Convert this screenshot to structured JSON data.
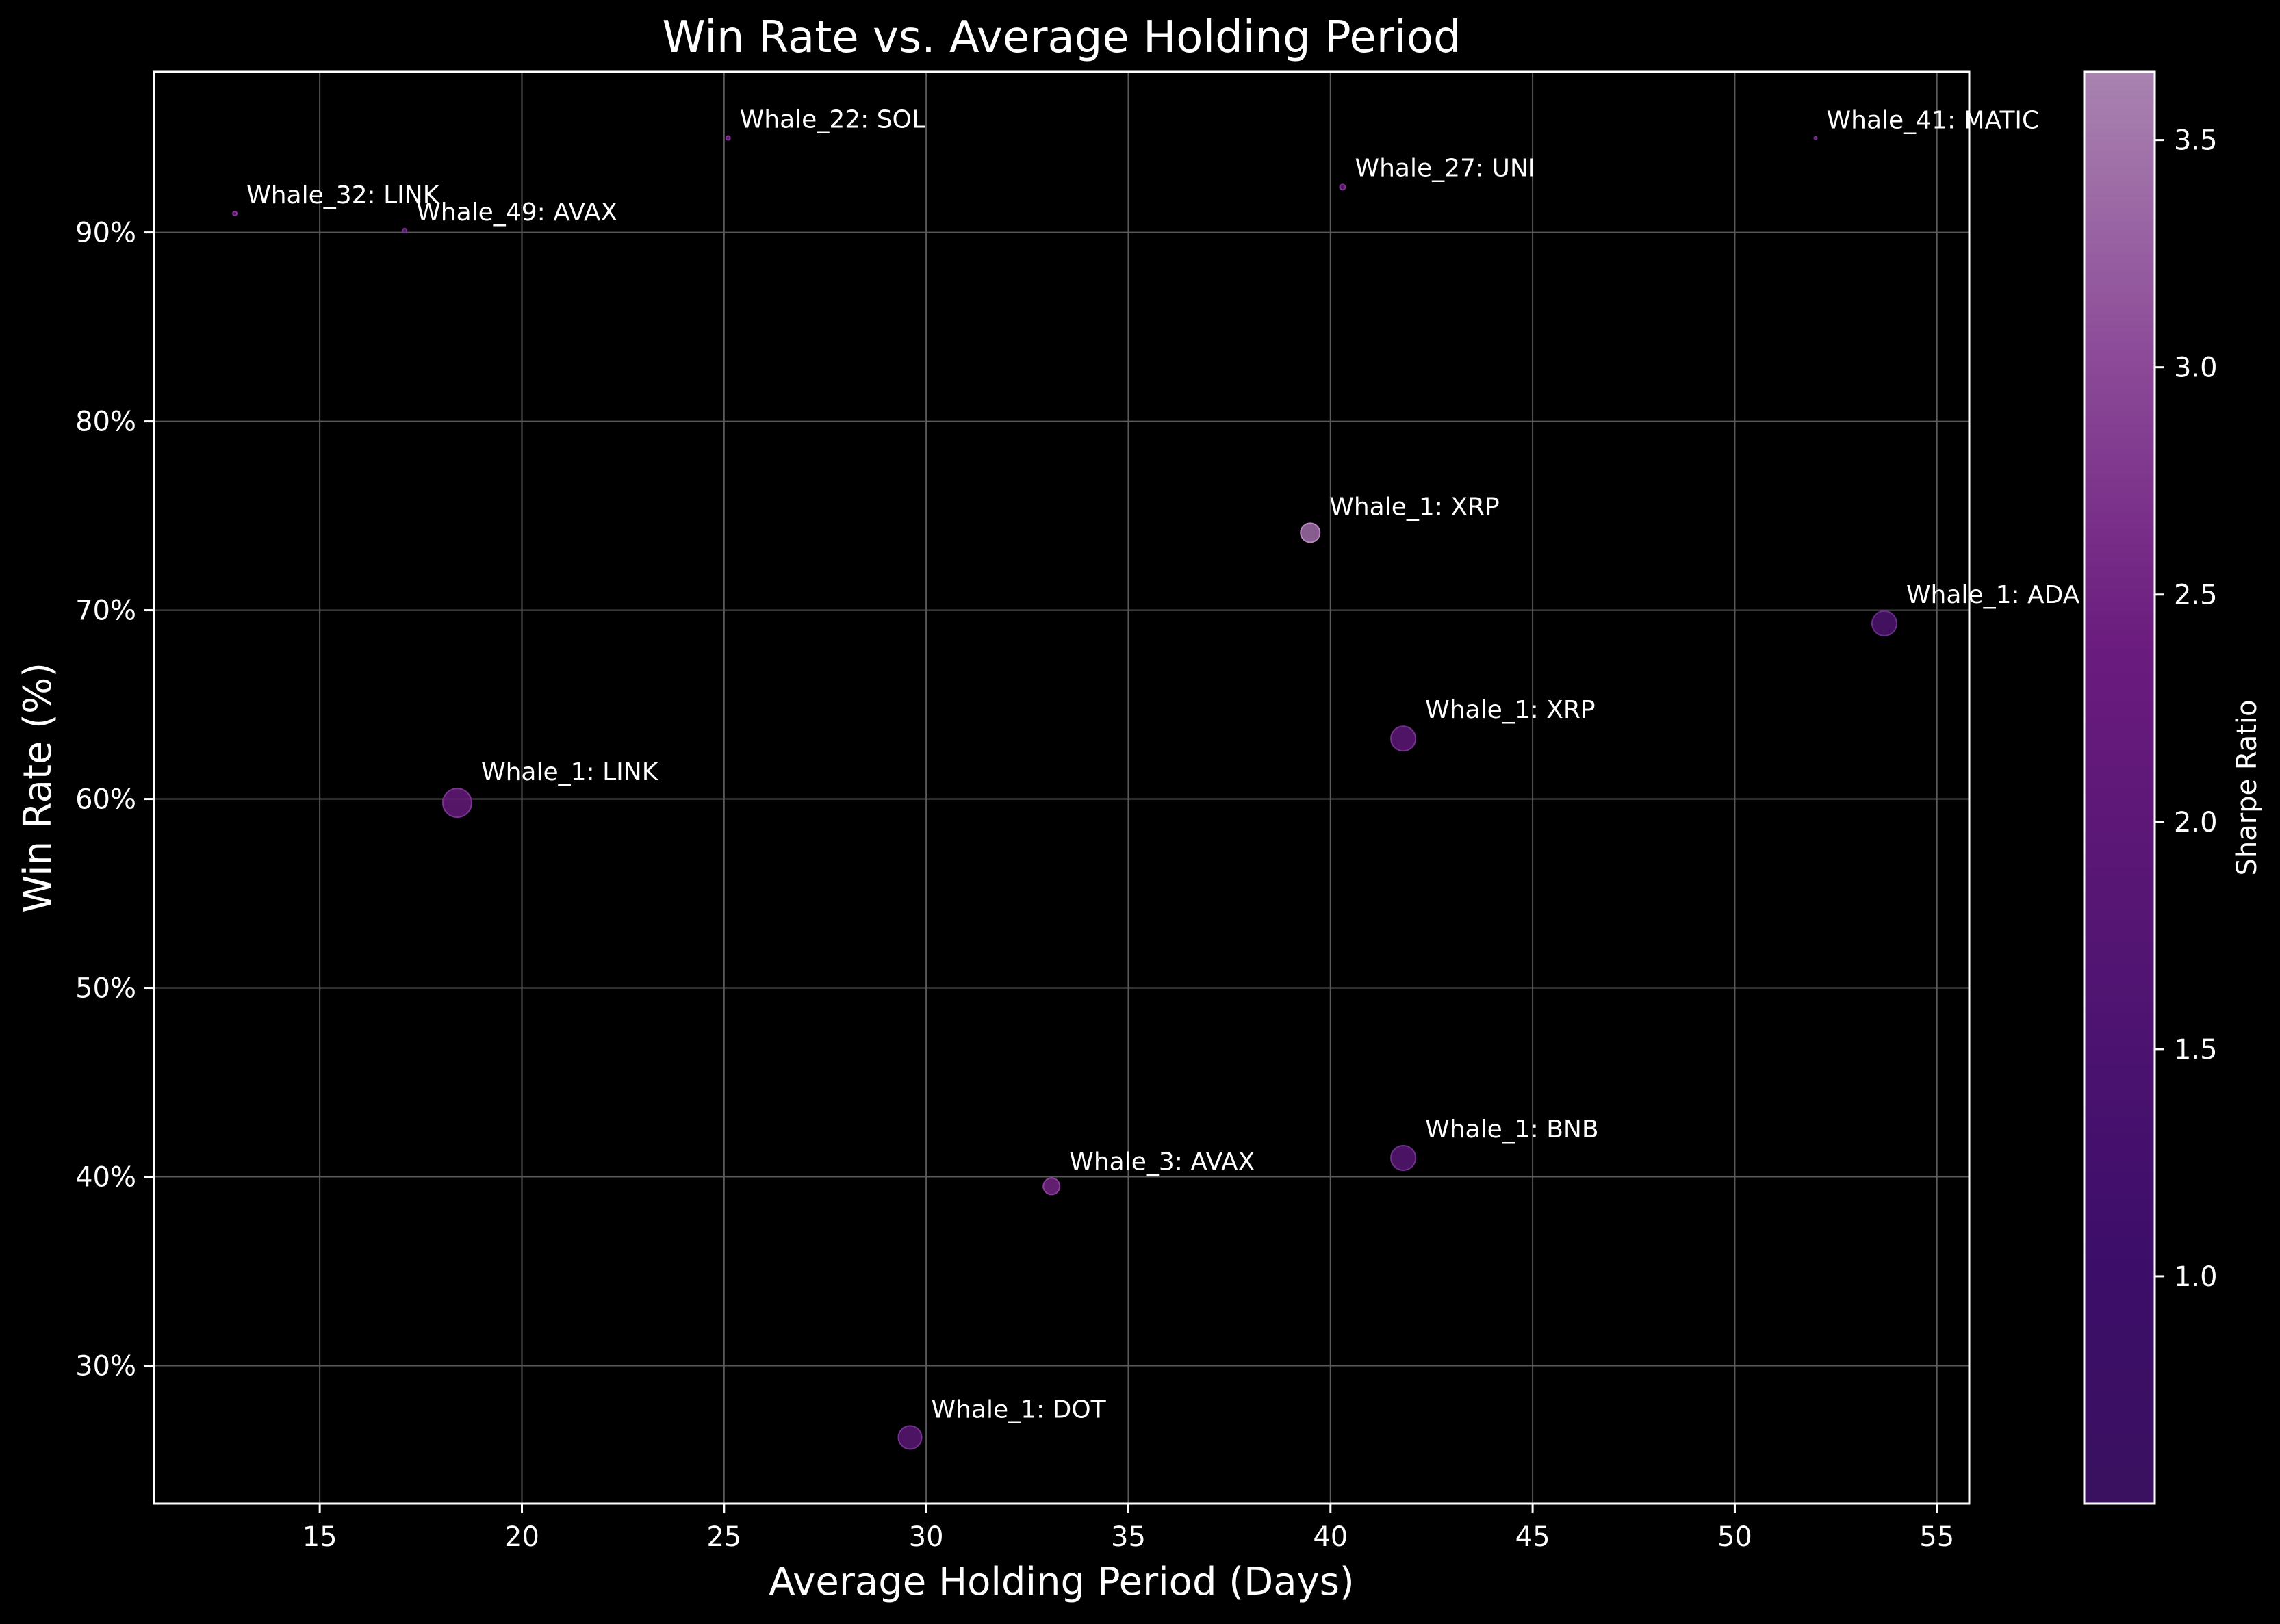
{
  "chart_data": {
    "type": "scatter",
    "title": "Win Rate vs. Average Holding Period",
    "xlabel": "Average Holding Period (Days)",
    "ylabel": "Win Rate (%)",
    "xlim": [
      10.9,
      55.8
    ],
    "ylim": [
      22.7,
      98.5
    ],
    "x_ticks": [
      15,
      20,
      25,
      30,
      35,
      40,
      45,
      50,
      55
    ],
    "y_ticks": [
      30,
      40,
      50,
      60,
      70,
      80,
      90
    ],
    "y_tick_labels": [
      "30%",
      "40%",
      "50%",
      "60%",
      "70%",
      "80%",
      "90%"
    ],
    "grid": true,
    "colorbar": {
      "label": "Sharpe Ratio",
      "range": [
        0.5,
        3.65
      ],
      "ticks": [
        1.0,
        1.5,
        2.0,
        2.5,
        3.0,
        3.5
      ],
      "tick_labels": [
        "1.0",
        "1.5",
        "2.0",
        "2.5",
        "3.0",
        "3.5"
      ]
    },
    "points": [
      {
        "label": "Whale_32: LINK",
        "x": 12.9,
        "y": 91.0,
        "sharpe": 2.3,
        "size": 3
      },
      {
        "label": "Whale_49: AVAX",
        "x": 17.1,
        "y": 90.1,
        "sharpe": 2.1,
        "size": 3
      },
      {
        "label": "Whale_22: SOL",
        "x": 25.1,
        "y": 95.0,
        "sharpe": 2.4,
        "size": 3
      },
      {
        "label": "Whale_27: UNI",
        "x": 40.3,
        "y": 92.4,
        "sharpe": 2.4,
        "size": 4
      },
      {
        "label": "Whale_41: MATIC",
        "x": 52.0,
        "y": 95.0,
        "sharpe": 2.0,
        "size": 2
      },
      {
        "label": "Whale_1: XRP",
        "x": 39.5,
        "y": 74.1,
        "sharpe": 3.4,
        "size": 14
      },
      {
        "label": "Whale_1: ADA",
        "x": 53.7,
        "y": 69.3,
        "sharpe": 1.6,
        "size": 18
      },
      {
        "label": "Whale_1: XRP",
        "x": 41.8,
        "y": 63.2,
        "sharpe": 2.1,
        "size": 18
      },
      {
        "label": "Whale_1: LINK",
        "x": 18.4,
        "y": 59.8,
        "sharpe": 2.3,
        "size": 21
      },
      {
        "label": "Whale_1: BNB",
        "x": 41.8,
        "y": 41.0,
        "sharpe": 1.9,
        "size": 18
      },
      {
        "label": "Whale_3: AVAX",
        "x": 33.1,
        "y": 39.5,
        "sharpe": 2.6,
        "size": 12
      },
      {
        "label": "Whale_1: DOT",
        "x": 29.6,
        "y": 26.2,
        "sharpe": 2.0,
        "size": 17
      }
    ]
  }
}
